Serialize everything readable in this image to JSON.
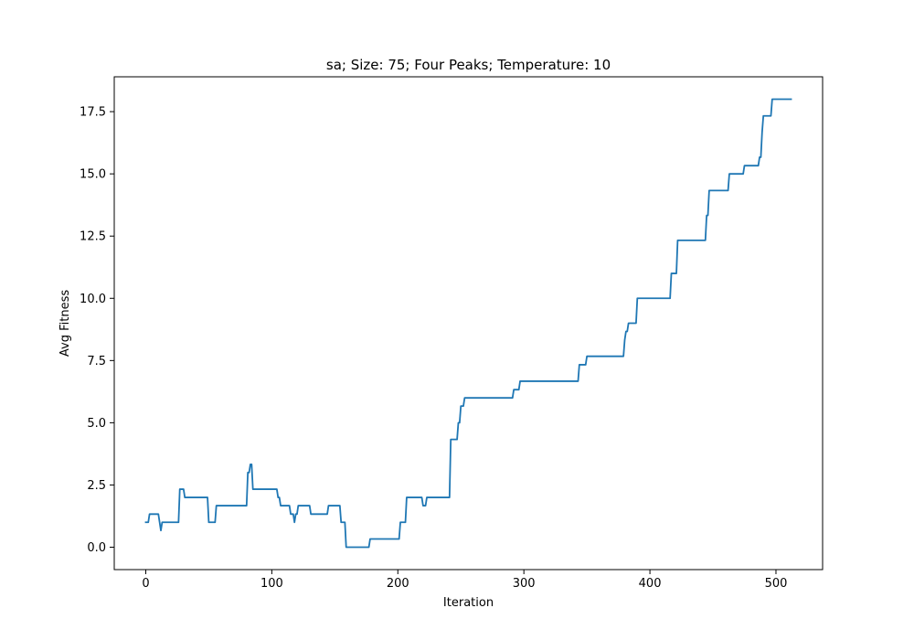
{
  "chart_data": {
    "type": "line",
    "title": "sa; Size: 75; Four Peaks; Temperature: 10",
    "xlabel": "Iteration",
    "ylabel": "Avg Fitness",
    "xlim": [
      -25,
      537
    ],
    "ylim": [
      -0.9,
      18.9
    ],
    "xticks": [
      0,
      100,
      200,
      300,
      400,
      500
    ],
    "xtick_labels": [
      "0",
      "100",
      "200",
      "300",
      "400",
      "500"
    ],
    "yticks": [
      0.0,
      2.5,
      5.0,
      7.5,
      10.0,
      12.5,
      15.0,
      17.5
    ],
    "ytick_labels": [
      "0.0",
      "2.5",
      "5.0",
      "7.5",
      "10.0",
      "12.5",
      "15.0",
      "17.5"
    ],
    "grid": false,
    "series": [
      {
        "color": "#1f77b4",
        "x": [
          0,
          2,
          3,
          10,
          11,
          12,
          13,
          14,
          26,
          27,
          30,
          31,
          49,
          50,
          55,
          56,
          80,
          81,
          82,
          83,
          84,
          85,
          86,
          104,
          105,
          106,
          107,
          114,
          115,
          117,
          118,
          119,
          120,
          121,
          130,
          131,
          144,
          145,
          154,
          155,
          158,
          159,
          177,
          178,
          201,
          202,
          206,
          207,
          219,
          220,
          222,
          223,
          241,
          242,
          247,
          248,
          249,
          250,
          252,
          253,
          255,
          256,
          291,
          292,
          296,
          297,
          343,
          344,
          349,
          350,
          379,
          380,
          381,
          382,
          383,
          384,
          389,
          390,
          416,
          417,
          421,
          422,
          444,
          445,
          446,
          447,
          462,
          463,
          474,
          475,
          486,
          487,
          488,
          489,
          490,
          491,
          496,
          497,
          500,
          512
        ],
        "y": [
          1.0,
          1.0,
          1.33,
          1.33,
          1.0,
          0.67,
          1.0,
          1.0,
          1.0,
          2.33,
          2.33,
          2.0,
          2.0,
          1.0,
          1.0,
          1.67,
          1.67,
          3.0,
          3.0,
          3.33,
          3.33,
          2.33,
          2.33,
          2.33,
          2.0,
          2.0,
          1.67,
          1.67,
          1.33,
          1.33,
          1.0,
          1.33,
          1.33,
          1.67,
          1.67,
          1.33,
          1.33,
          1.67,
          1.67,
          1.0,
          1.0,
          0.0,
          0.0,
          0.33,
          0.33,
          1.0,
          1.0,
          2.0,
          2.0,
          1.67,
          1.67,
          2.0,
          2.0,
          4.33,
          4.33,
          5.0,
          5.0,
          5.67,
          5.67,
          6.0,
          6.0,
          6.0,
          6.0,
          6.33,
          6.33,
          6.67,
          6.67,
          7.33,
          7.33,
          7.67,
          7.67,
          8.33,
          8.67,
          8.67,
          9.0,
          9.0,
          9.0,
          10.0,
          10.0,
          11.0,
          11.0,
          12.33,
          12.33,
          13.33,
          13.33,
          14.33,
          14.33,
          15.0,
          15.0,
          15.33,
          15.33,
          15.67,
          15.67,
          16.67,
          17.33,
          17.33,
          17.33,
          18.0,
          18.0,
          18.0
        ]
      }
    ]
  }
}
